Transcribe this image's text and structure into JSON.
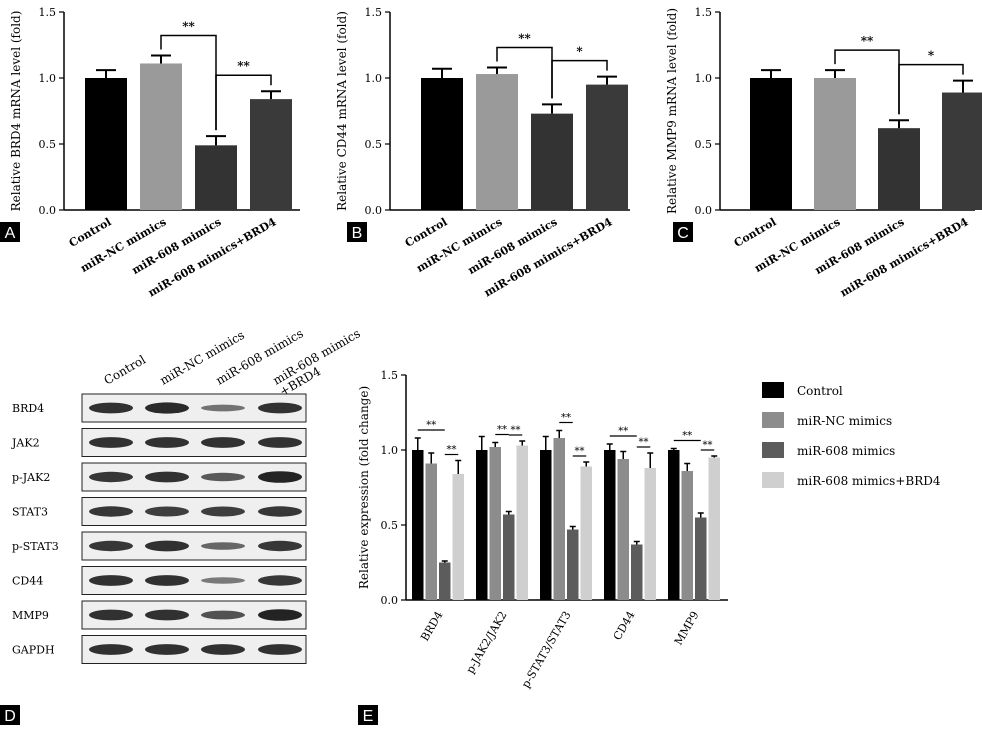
{
  "panels": [
    {
      "letter": "A",
      "ylabel": "Relative BRD4 mRNA level (fold)"
    },
    {
      "letter": "B",
      "ylabel": "Relative CD44 mRNA level (fold)"
    },
    {
      "letter": "C",
      "ylabel": "Relative MMP9 mRNA level (fold)"
    },
    {
      "letter": "D"
    },
    {
      "letter": "E"
    }
  ],
  "groups": [
    "Control",
    "miR-NC mimics",
    "miR-608 mimics",
    "miR-608 mimics+BRD4"
  ],
  "colors": {
    "control": "#000000",
    "nc": "#9a9a9a",
    "mimic": "#333333",
    "brd4": "#3a3a3a",
    "nc_e": "#8c8c8c",
    "mimic_e": "#5c5c5c",
    "brd4_e": "#cfcfcf"
  },
  "chart_data": [
    {
      "type": "bar",
      "ylabel": "Relative BRD4 mRNA level (fold)",
      "categories": [
        "Control",
        "miR-NC mimics",
        "miR-608 mimics",
        "miR-608 mimics+BRD4"
      ],
      "values": [
        1.0,
        1.11,
        0.49,
        0.84
      ],
      "errors": [
        0.06,
        0.06,
        0.07,
        0.06
      ],
      "ylim": [
        0,
        1.5
      ],
      "yticks": [
        "0.0",
        "0.5",
        "1.0",
        "1.5"
      ],
      "significance": [
        {
          "from": 1,
          "to": 2,
          "label": "**"
        },
        {
          "from": 2,
          "to": 3,
          "label": "**"
        }
      ]
    },
    {
      "type": "bar",
      "ylabel": "Relative CD44 mRNA level (fold)",
      "categories": [
        "Control",
        "miR-NC mimics",
        "miR-608 mimics",
        "miR-608 mimics+BRD4"
      ],
      "values": [
        1.0,
        1.03,
        0.73,
        0.95
      ],
      "errors": [
        0.07,
        0.05,
        0.07,
        0.06
      ],
      "ylim": [
        0,
        1.5
      ],
      "yticks": [
        "0.0",
        "0.5",
        "1.0",
        "1.5"
      ],
      "significance": [
        {
          "from": 1,
          "to": 2,
          "label": "**"
        },
        {
          "from": 2,
          "to": 3,
          "label": "*"
        }
      ]
    },
    {
      "type": "bar",
      "ylabel": "Relative MMP9 mRNA level (fold)",
      "categories": [
        "Control",
        "miR-NC mimics",
        "miR-608 mimics",
        "miR-608 mimics+BRD4"
      ],
      "values": [
        1.0,
        1.0,
        0.62,
        0.89
      ],
      "errors": [
        0.06,
        0.06,
        0.06,
        0.09
      ],
      "ylim": [
        0,
        1.5
      ],
      "yticks": [
        "0.0",
        "0.5",
        "1.0",
        "1.5"
      ],
      "significance": [
        {
          "from": 1,
          "to": 2,
          "label": "**"
        },
        {
          "from": 2,
          "to": 3,
          "label": "*"
        }
      ]
    },
    {
      "type": "bar",
      "ylabel": "Relative expression (fold change)",
      "categories": [
        "BRD4",
        "p-JAK2/JAK2",
        "p-STAT3/STAT3",
        "CD44",
        "MMP9"
      ],
      "series": [
        {
          "name": "Control",
          "values": [
            1.0,
            1.0,
            1.0,
            1.0,
            1.0
          ],
          "errors": [
            0.08,
            0.09,
            0.09,
            0.04,
            0.01
          ]
        },
        {
          "name": "miR-NC mimics",
          "values": [
            0.91,
            1.02,
            1.08,
            0.94,
            0.86
          ],
          "errors": [
            0.07,
            0.03,
            0.05,
            0.05,
            0.05
          ]
        },
        {
          "name": "miR-608 mimics",
          "values": [
            0.25,
            0.57,
            0.47,
            0.37,
            0.55
          ],
          "errors": [
            0.01,
            0.02,
            0.02,
            0.02,
            0.03
          ]
        },
        {
          "name": "miR-608 mimics+BRD4",
          "values": [
            0.84,
            1.03,
            0.89,
            0.88,
            0.95
          ],
          "errors": [
            0.09,
            0.03,
            0.03,
            0.1,
            0.01
          ]
        }
      ],
      "ylim": [
        0,
        1.5
      ],
      "yticks": [
        "0.0",
        "0.5",
        "1.0",
        "1.5"
      ],
      "significance_label": "**",
      "significance": [
        {
          "cat": 0,
          "from": 0,
          "to": 2,
          "label": "**"
        },
        {
          "cat": 0,
          "from": 2,
          "to": 3,
          "label": "**"
        },
        {
          "cat": 1,
          "from": 1,
          "to": 2,
          "label": "**"
        },
        {
          "cat": 1,
          "from": 2,
          "to": 3,
          "label": "**"
        },
        {
          "cat": 2,
          "from": 1,
          "to": 2,
          "label": "**"
        },
        {
          "cat": 2,
          "from": 2,
          "to": 3,
          "label": "**"
        },
        {
          "cat": 3,
          "from": 0,
          "to": 2,
          "label": "**"
        },
        {
          "cat": 3,
          "from": 2,
          "to": 3,
          "label": "**"
        },
        {
          "cat": 4,
          "from": 0,
          "to": 2,
          "label": "**"
        },
        {
          "cat": 4,
          "from": 2,
          "to": 3,
          "label": "**"
        }
      ]
    }
  ],
  "blot": {
    "lanes": [
      "Control",
      "miR-NC mimics",
      "miR-608 mimics",
      "miR-608 mimics\n+BRD4"
    ],
    "rows": [
      {
        "label": "BRD4",
        "intensity": [
          0.85,
          0.9,
          0.35,
          0.85
        ]
      },
      {
        "label": "JAK2",
        "intensity": [
          0.85,
          0.85,
          0.85,
          0.85
        ]
      },
      {
        "label": "p-JAK2",
        "intensity": [
          0.8,
          0.85,
          0.55,
          0.95
        ]
      },
      {
        "label": "STAT3",
        "intensity": [
          0.8,
          0.75,
          0.75,
          0.8
        ]
      },
      {
        "label": "p-STAT3",
        "intensity": [
          0.8,
          0.85,
          0.45,
          0.8
        ]
      },
      {
        "label": "CD44",
        "intensity": [
          0.85,
          0.85,
          0.3,
          0.8
        ]
      },
      {
        "label": "MMP9",
        "intensity": [
          0.85,
          0.85,
          0.6,
          0.95
        ]
      },
      {
        "label": "GAPDH",
        "intensity": [
          0.85,
          0.85,
          0.85,
          0.85
        ]
      }
    ]
  }
}
